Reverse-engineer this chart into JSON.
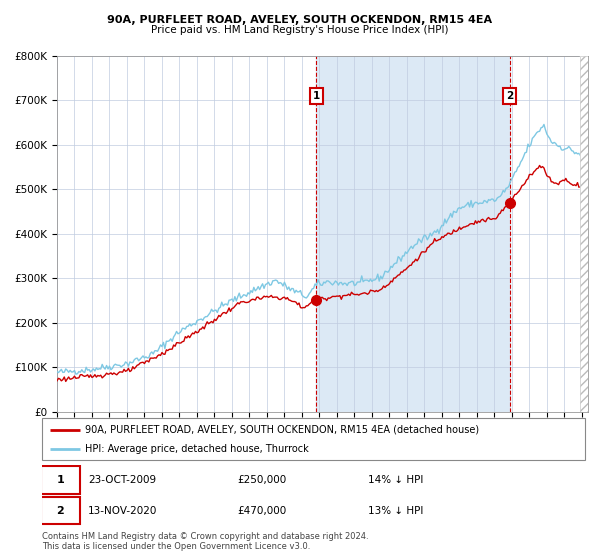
{
  "title1": "90A, PURFLEET ROAD, AVELEY, SOUTH OCKENDON, RM15 4EA",
  "title2": "Price paid vs. HM Land Registry's House Price Index (HPI)",
  "legend_line1": "90A, PURFLEET ROAD, AVELEY, SOUTH OCKENDON, RM15 4EA (detached house)",
  "legend_line2": "HPI: Average price, detached house, Thurrock",
  "annotation1_label": "1",
  "annotation1_date": "23-OCT-2009",
  "annotation1_price": "£250,000",
  "annotation1_hpi": "14% ↓ HPI",
  "annotation2_label": "2",
  "annotation2_date": "13-NOV-2020",
  "annotation2_price": "£470,000",
  "annotation2_hpi": "13% ↓ HPI",
  "footer": "Contains HM Land Registry data © Crown copyright and database right 2024.\nThis data is licensed under the Open Government Licence v3.0.",
  "hpi_color": "#7ec8e3",
  "price_color": "#cc0000",
  "shaded_color": "#dce9f5",
  "marker_color": "#cc0000",
  "annotation_box_color": "#cc0000",
  "ylim": [
    0,
    800000
  ],
  "yticks": [
    0,
    100000,
    200000,
    300000,
    400000,
    500000,
    600000,
    700000,
    800000
  ],
  "year_start": 1995,
  "year_end": 2025,
  "transaction1_year": 2009.82,
  "transaction2_year": 2020.87,
  "transaction1_price": 250000,
  "transaction2_price": 470000
}
